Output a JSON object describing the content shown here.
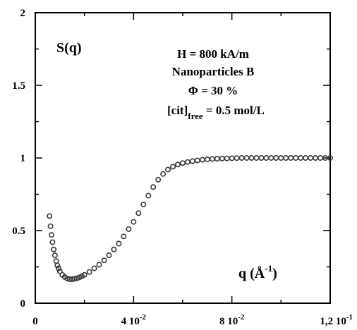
{
  "chart_data": {
    "type": "scatter",
    "title": "",
    "ylabel": "S(q)",
    "xlabel": "q (Å-1)",
    "xlabel_parts": {
      "base": "q (Å",
      "sup": "-1",
      "close": ")"
    },
    "xlim": [
      0,
      0.12
    ],
    "ylim": [
      0,
      2
    ],
    "grid": false,
    "x_ticks": [
      {
        "value": 0,
        "label": "0",
        "exp": ""
      },
      {
        "value": 0.04,
        "label": "4 10",
        "exp": "-2"
      },
      {
        "value": 0.08,
        "label": "8 10",
        "exp": "-2"
      },
      {
        "value": 0.12,
        "label": "1,2 10",
        "exp": "-1"
      }
    ],
    "y_ticks": [
      {
        "value": 0,
        "label": "0"
      },
      {
        "value": 0.5,
        "label": "0.5"
      },
      {
        "value": 1,
        "label": "1"
      },
      {
        "value": 1.5,
        "label": "1.5"
      },
      {
        "value": 2,
        "label": "2"
      }
    ],
    "annotations": {
      "line1": "H = 800 kA/m",
      "line2": "Nanoparticles B",
      "line3": "Φ = 30 %",
      "line4_base": "[cit]",
      "line4_sub": "free",
      "line4_rest": " = 0.5 mol/L"
    },
    "series": [
      {
        "marker_color": "#3a3a3a",
        "x": [
          0.0058,
          0.0062,
          0.0066,
          0.007,
          0.0075,
          0.008,
          0.0085,
          0.009,
          0.0095,
          0.01,
          0.011,
          0.012,
          0.013,
          0.014,
          0.015,
          0.016,
          0.017,
          0.018,
          0.019,
          0.02,
          0.022,
          0.024,
          0.026,
          0.028,
          0.03,
          0.032,
          0.034,
          0.036,
          0.038,
          0.04,
          0.042,
          0.044,
          0.046,
          0.048,
          0.05,
          0.052,
          0.054,
          0.056,
          0.058,
          0.06,
          0.062,
          0.064,
          0.066,
          0.068,
          0.07,
          0.072,
          0.074,
          0.076,
          0.078,
          0.08,
          0.082,
          0.084,
          0.086,
          0.088,
          0.09,
          0.092,
          0.094,
          0.096,
          0.098,
          0.1,
          0.102,
          0.104,
          0.106,
          0.108,
          0.11,
          0.112,
          0.114,
          0.116,
          0.118,
          0.12
        ],
        "y": [
          0.6,
          0.53,
          0.47,
          0.42,
          0.37,
          0.33,
          0.29,
          0.26,
          0.24,
          0.22,
          0.195,
          0.18,
          0.17,
          0.165,
          0.165,
          0.168,
          0.172,
          0.178,
          0.186,
          0.195,
          0.215,
          0.24,
          0.265,
          0.295,
          0.33,
          0.37,
          0.41,
          0.46,
          0.51,
          0.56,
          0.62,
          0.68,
          0.74,
          0.8,
          0.85,
          0.89,
          0.92,
          0.94,
          0.955,
          0.965,
          0.972,
          0.978,
          0.983,
          0.987,
          0.99,
          0.993,
          0.995,
          0.996,
          0.997,
          0.998,
          0.999,
          1.0,
          1.0,
          1.0,
          1.0,
          1.0,
          1.0,
          1.0,
          1.0,
          1.0,
          1.0,
          1.0,
          1.0,
          1.0,
          1.0,
          1.0,
          1.0,
          1.0,
          1.0,
          1.0
        ]
      }
    ]
  }
}
